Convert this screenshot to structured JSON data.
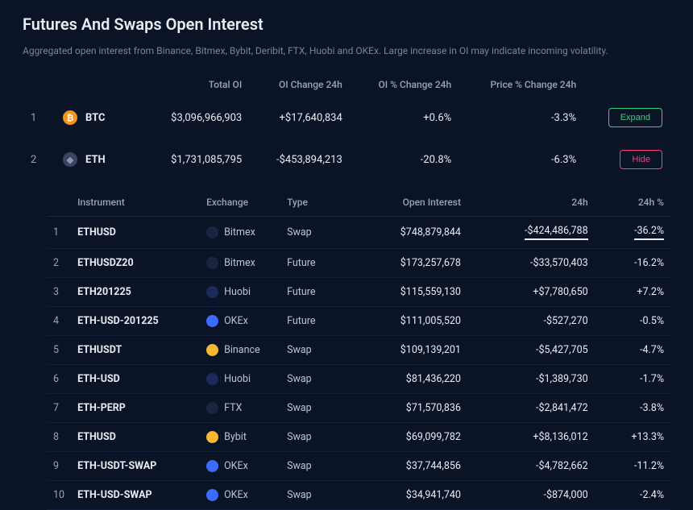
{
  "title": "Futures And Swaps Open Interest",
  "subtitle": "Aggregated open interest from Binance, Bitmex, Bybit, Deribit, FTX, Huobi and OKEx. Large increase in OI may indicate incoming volatility.",
  "summary": {
    "headers": {
      "total_oi": "Total OI",
      "change_24h": "OI Change 24h",
      "pct_change_24h": "OI % Change 24h",
      "price_pct_24h": "Price % Change 24h"
    },
    "rows": [
      {
        "idx": "1",
        "symbol": "BTC",
        "icon_bg": "#f7931a",
        "icon_glyph": "₿",
        "icon_color": "#ffffff",
        "total_oi": "$3,096,966,903",
        "change_24h": "+$17,640,834",
        "change_24h_dir": "pos",
        "pct_24h": "+0.6%",
        "pct_24h_dir": "pos",
        "price_pct": "-3.3%",
        "price_pct_dir": "neg",
        "action_label": "Expand",
        "action_kind": "expand"
      },
      {
        "idx": "2",
        "symbol": "ETH",
        "icon_bg": "#3a4560",
        "icon_glyph": "◆",
        "icon_color": "#8a96b2",
        "total_oi": "$1,731,085,795",
        "change_24h": "-$453,894,213",
        "change_24h_dir": "neg",
        "pct_24h": "-20.8%",
        "pct_24h_dir": "neg",
        "price_pct": "-6.3%",
        "price_pct_dir": "neg",
        "action_label": "Hide",
        "action_kind": "hide"
      }
    ]
  },
  "detail": {
    "headers": {
      "instrument": "Instrument",
      "exchange": "Exchange",
      "type": "Type",
      "open_interest": "Open Interest",
      "h24": "24h",
      "h24_pct": "24h %"
    },
    "exchange_icons": {
      "Bitmex": {
        "bg": "#1a2540",
        "glyph_color": "#ff3b3b"
      },
      "Huobi": {
        "bg": "#1a2a5a",
        "glyph_color": "#ffffff"
      },
      "OKEx": {
        "bg": "#3b6bff",
        "glyph_color": "#ffffff"
      },
      "Binance": {
        "bg": "#f3ba2f",
        "glyph_color": "#1a1a1a"
      },
      "FTX": {
        "bg": "#1a2540",
        "glyph_color": "#2dd6c4"
      },
      "Bybit": {
        "bg": "#f7b731",
        "glyph_color": "#1a1a1a"
      }
    },
    "rows": [
      {
        "idx": "1",
        "instrument": "ETHUSD",
        "exchange": "Bitmex",
        "type": "Swap",
        "oi": "$748,879,844",
        "h24": "-$424,486,788",
        "h24_dir": "neg",
        "h24_pct": "-36.2%",
        "h24_pct_dir": "neg",
        "highlight": true
      },
      {
        "idx": "2",
        "instrument": "ETHUSDZ20",
        "exchange": "Bitmex",
        "type": "Future",
        "oi": "$173,257,678",
        "h24": "-$33,570,403",
        "h24_dir": "neg",
        "h24_pct": "-16.2%",
        "h24_pct_dir": "neg",
        "highlight": false
      },
      {
        "idx": "3",
        "instrument": "ETH201225",
        "exchange": "Huobi",
        "type": "Future",
        "oi": "$115,559,130",
        "h24": "+$7,780,650",
        "h24_dir": "pos",
        "h24_pct": "+7.2%",
        "h24_pct_dir": "pos",
        "highlight": false
      },
      {
        "idx": "4",
        "instrument": "ETH-USD-201225",
        "exchange": "OKEx",
        "type": "Future",
        "oi": "$111,005,520",
        "h24": "-$527,270",
        "h24_dir": "neg",
        "h24_pct": "-0.5%",
        "h24_pct_dir": "neg",
        "highlight": false
      },
      {
        "idx": "5",
        "instrument": "ETHUSDT",
        "exchange": "Binance",
        "type": "Swap",
        "oi": "$109,139,201",
        "h24": "-$5,427,705",
        "h24_dir": "neg",
        "h24_pct": "-4.7%",
        "h24_pct_dir": "neg",
        "highlight": false
      },
      {
        "idx": "6",
        "instrument": "ETH-USD",
        "exchange": "Huobi",
        "type": "Swap",
        "oi": "$81,436,220",
        "h24": "-$1,389,730",
        "h24_dir": "neg",
        "h24_pct": "-1.7%",
        "h24_pct_dir": "neg",
        "highlight": false
      },
      {
        "idx": "7",
        "instrument": "ETH-PERP",
        "exchange": "FTX",
        "type": "Swap",
        "oi": "$71,570,836",
        "h24": "-$2,841,472",
        "h24_dir": "neg",
        "h24_pct": "-3.8%",
        "h24_pct_dir": "neg",
        "highlight": false
      },
      {
        "idx": "8",
        "instrument": "ETHUSD",
        "exchange": "Bybit",
        "type": "Swap",
        "oi": "$69,099,782",
        "h24": "+$8,136,012",
        "h24_dir": "pos",
        "h24_pct": "+13.3%",
        "h24_pct_dir": "pos",
        "highlight": false
      },
      {
        "idx": "9",
        "instrument": "ETH-USDT-SWAP",
        "exchange": "OKEx",
        "type": "Swap",
        "oi": "$37,744,856",
        "h24": "-$4,782,662",
        "h24_dir": "neg",
        "h24_pct": "-11.2%",
        "h24_pct_dir": "neg",
        "highlight": false
      },
      {
        "idx": "10",
        "instrument": "ETH-USD-SWAP",
        "exchange": "OKEx",
        "type": "Swap",
        "oi": "$34,941,740",
        "h24": "-$874,000",
        "h24_dir": "neg",
        "h24_pct": "-2.4%",
        "h24_pct_dir": "neg",
        "highlight": false
      }
    ]
  },
  "colors": {
    "background": "#0b1426",
    "text_primary": "#e8ecf4",
    "text_secondary": "#9aa4b8",
    "positive": "#2dd67b",
    "negative": "#ff3b7a",
    "row_border": "#141f38"
  }
}
